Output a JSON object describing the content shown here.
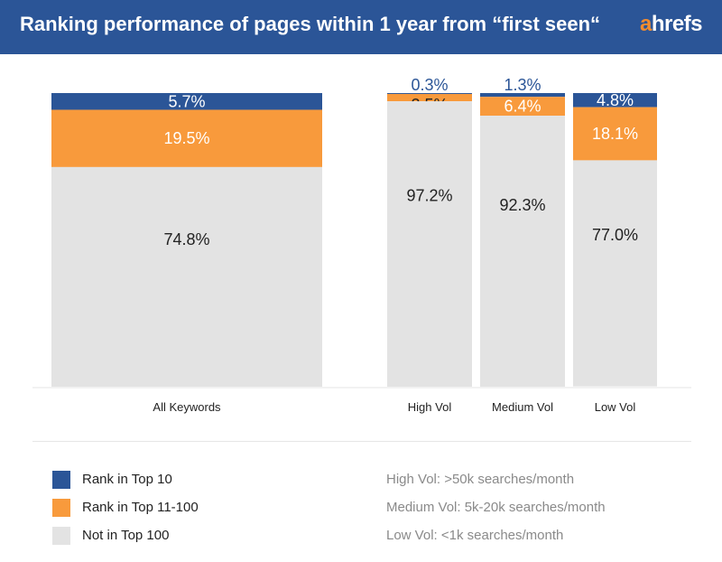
{
  "header": {
    "title": "Ranking performance of pages within 1 year from “first seen“",
    "logo_a": "a",
    "logo_rest": "hrefs"
  },
  "colors": {
    "top10": "#2b5597",
    "top11_100": "#f89a3c",
    "not_top100": "#e3e3e3",
    "header_bg": "#2b5597"
  },
  "chart_data": {
    "type": "bar",
    "stacked": true,
    "percent": true,
    "categories": [
      "All Keywords",
      "High Vol",
      "Medium Vol",
      "Low Vol"
    ],
    "series": [
      {
        "name": "Rank in Top 10",
        "values": [
          5.7,
          0.3,
          1.3,
          4.8
        ],
        "labels": [
          "5.7%",
          "0.3%",
          "1.3%",
          "4.8%"
        ]
      },
      {
        "name": "Rank in Top 11-100",
        "values": [
          19.5,
          2.5,
          6.4,
          18.1
        ],
        "labels": [
          "19.5%",
          "2.5%",
          "6.4%",
          "18.1%"
        ]
      },
      {
        "name": "Not in Top 100",
        "values": [
          74.8,
          97.2,
          92.3,
          77.0
        ],
        "labels": [
          "74.8%",
          "97.2%",
          "92.3%",
          "77.0%"
        ]
      }
    ],
    "ylim": [
      0,
      100
    ]
  },
  "legend": [
    {
      "label": "Rank in Top 10"
    },
    {
      "label": "Rank in Top 11-100"
    },
    {
      "label": "Not in Top 100"
    }
  ],
  "notes": [
    "High Vol: >50k searches/month",
    "Medium Vol: 5k-20k searches/month",
    "Low Vol: <1k searches/month"
  ]
}
